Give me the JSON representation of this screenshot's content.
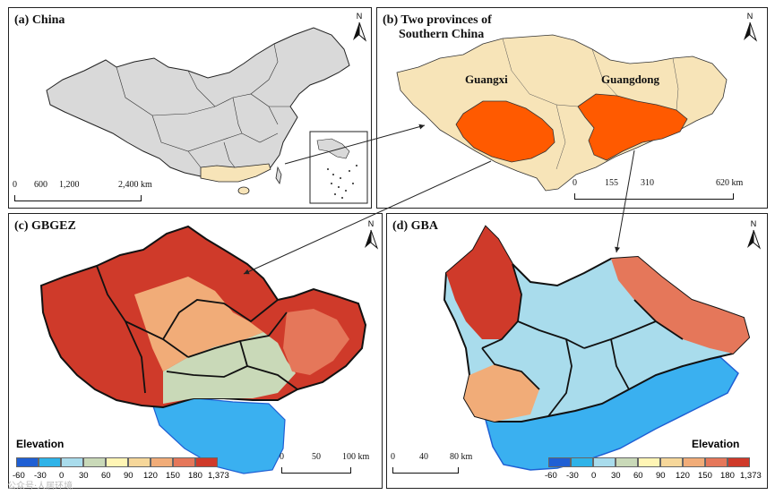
{
  "panels": {
    "a": {
      "title": "(a) China"
    },
    "b": {
      "title_line1": "(b) Two provinces of",
      "title_line2": "Southern China",
      "labels": {
        "guangxi": "Guangxi",
        "guangdong": "Guangdong"
      }
    },
    "c": {
      "title": "(c) GBGEZ"
    },
    "d": {
      "title": "(d) GBA"
    }
  },
  "north_label": "N",
  "scales": {
    "a": [
      "0",
      "600",
      "1,200",
      "2,400 km"
    ],
    "b": [
      "0",
      "155",
      "310",
      "620 km"
    ],
    "c": [
      "0",
      "50",
      "100 km"
    ],
    "d": [
      "0",
      "40",
      "80 km"
    ]
  },
  "legend": {
    "title": "Elevation",
    "ticks_c": [
      "-60",
      "-30",
      "0",
      "30",
      "60",
      "90",
      "120",
      "150",
      "180",
      "1,373"
    ],
    "ticks_d": [
      "-60",
      "-30",
      "0",
      "30",
      "60",
      "90",
      "120",
      "150",
      "180",
      "1,373"
    ],
    "colors": [
      "#1f5fd4",
      "#2fb3e8",
      "#a9dcec",
      "#c9d9b8",
      "#fff5b5",
      "#f6d79a",
      "#f1ac78",
      "#e5775a",
      "#cf3a2a"
    ]
  },
  "map_colors": {
    "china_fill": "#d9d9d9",
    "province_fill": "#f7e4b8",
    "highlight_fill": "#ff5a00",
    "water": "#3ab0f0"
  },
  "watermark": "公众号·人居环境"
}
